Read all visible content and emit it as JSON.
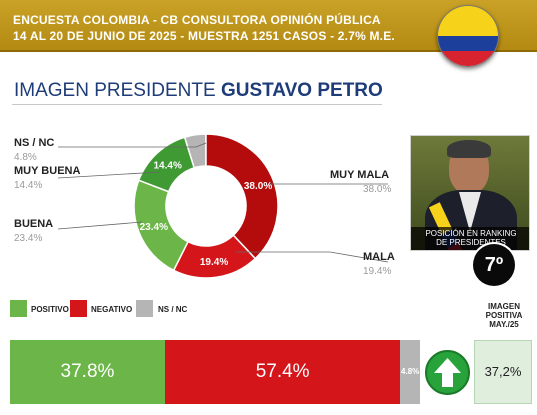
{
  "header": {
    "line1": "ENCUESTA COLOMBIA - CB CONSULTORA OPINIÓN PÚBLICA",
    "line2": "14 AL 20 DE JUNIO DE 2025 - MUESTRA 1251 CASOS - 2.7% M.E."
  },
  "title": {
    "prefix": "IMAGEN PRESIDENTE",
    "name": "GUSTAVO PETRO"
  },
  "chart_data": [
    {
      "type": "pie",
      "title": "IMAGEN PRESIDENTE GUSTAVO PETRO",
      "categories": [
        "MUY MALA",
        "MALA",
        "BUENA",
        "MUY BUENA",
        "NS / NC"
      ],
      "values": [
        38.0,
        19.4,
        23.4,
        14.4,
        4.8
      ],
      "value_labels": [
        "38.0%",
        "19.4%",
        "23.4%",
        "14.4%",
        "4.8%"
      ],
      "colors": [
        "#b40c0c",
        "#d4151a",
        "#6cb548",
        "#3f9a33",
        "#b5b5b5"
      ],
      "legend_placement": "around"
    },
    {
      "type": "bar",
      "categories": [
        "POSITIVO",
        "NEGATIVO",
        "NS / NC"
      ],
      "values": [
        37.8,
        57.4,
        4.8
      ],
      "value_labels": [
        "37.8%",
        "57.4%",
        "4.8%"
      ],
      "colors": [
        "#6cb548",
        "#d4151a",
        "#b5b5b5"
      ],
      "stacked": true,
      "orientation": "horizontal",
      "legend_placement": "top-left"
    }
  ],
  "photo": {
    "caption_line1": "POSICIÓN EN RANKING",
    "caption_line2": "DE PRESIDENTES"
  },
  "rank": "7º",
  "image_positive": {
    "label_line1": "IMAGEN",
    "label_line2": "POSITIVA",
    "label_line3": "MAY./25",
    "value": "37,2%"
  },
  "icons": {
    "arrow": "arrow-up-icon",
    "flag": "colombia-flag-icon"
  }
}
